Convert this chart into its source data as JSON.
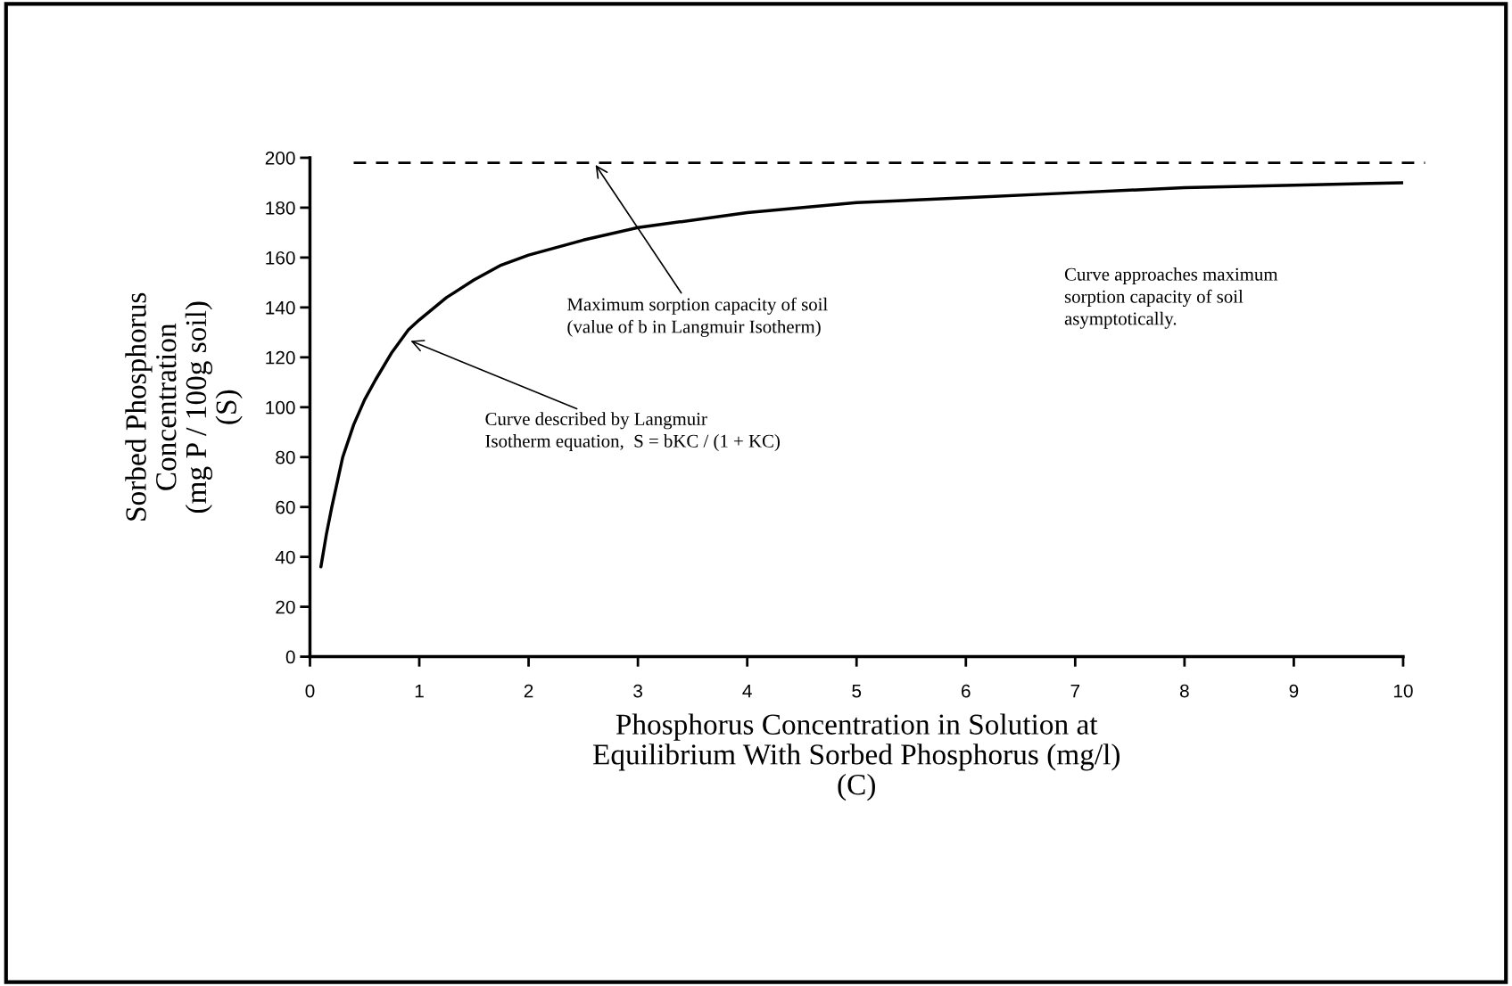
{
  "chart_data": {
    "type": "line",
    "xlabel": "Phosphorus Concentration in Solution at\nEquilibrium With Sorbed Phosphorus (mg/l)\n(C)",
    "ylabel": "Sorbed Phosphorus\nConcentration\n(mg P / 100g soil)\n(S)",
    "x": [
      0.1,
      0.15,
      0.2,
      0.3,
      0.4,
      0.5,
      0.6,
      0.75,
      0.9,
      1,
      1.25,
      1.5,
      1.75,
      2,
      2.5,
      3,
      4,
      5,
      6,
      7,
      8,
      9,
      10
    ],
    "series": [
      {
        "color": "#000000",
        "values": [
          36,
          49,
          60,
          80,
          93,
          103,
          111,
          122,
          131,
          135,
          144,
          151,
          157,
          161,
          167,
          172,
          178,
          182,
          184,
          186,
          188,
          189,
          190
        ]
      }
    ],
    "xlim": [
      0,
      10
    ],
    "xticks": [
      0,
      1,
      2,
      3,
      4,
      5,
      6,
      7,
      8,
      9,
      10
    ],
    "ylim": [
      0,
      200
    ],
    "yticks": [
      0,
      20,
      40,
      60,
      80,
      100,
      120,
      140,
      160,
      180,
      200
    ],
    "ref_lines": [
      {
        "axis": "y",
        "value": 198,
        "label": null,
        "color": "#000000",
        "line_style": "dashed"
      }
    ],
    "annotations": [
      {
        "text": "Maximum sorption capacity of soil\n(value of b in Langmuir Isotherm)",
        "x": 2.6,
        "y": 198
      },
      {
        "text": "Curve described by Langmuir\nIsotherm equation,  S = bKC / (1 + KC)",
        "x": 0.9,
        "y": 127
      },
      "Curve approaches maximum\nsorption capacity of soil\nasymptotically."
    ],
    "grid": false,
    "legend": false,
    "marker": "none",
    "line_style": "solid"
  }
}
